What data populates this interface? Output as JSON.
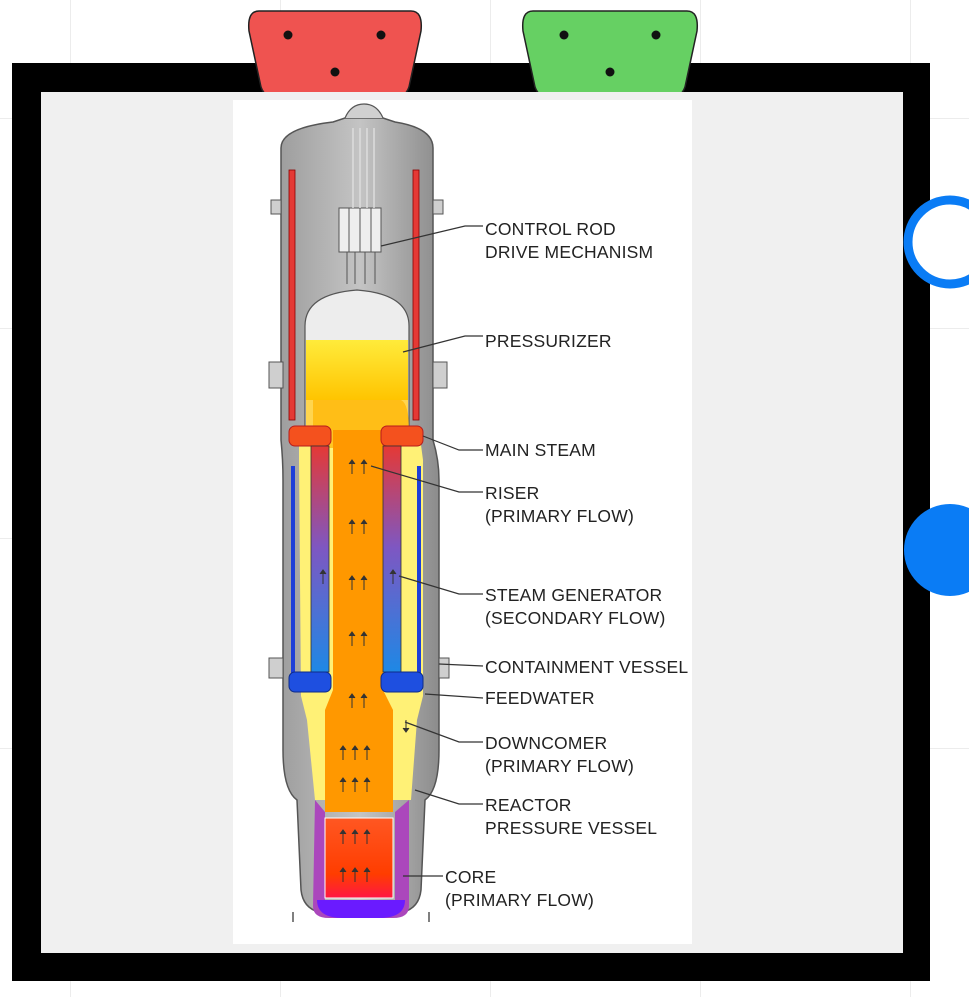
{
  "diagram": {
    "labels": [
      {
        "id": "crdm",
        "lines": [
          "CONTROL ROD",
          "DRIVE MECHANISM"
        ]
      },
      {
        "id": "pressurizer",
        "lines": [
          "PRESSURIZER"
        ]
      },
      {
        "id": "main-steam",
        "lines": [
          "MAIN STEAM"
        ]
      },
      {
        "id": "riser",
        "lines": [
          "RISER",
          "(PRIMARY FLOW)"
        ]
      },
      {
        "id": "steam-generator",
        "lines": [
          "STEAM GENERATOR",
          "(SECONDARY FLOW)"
        ]
      },
      {
        "id": "containment-vessel",
        "lines": [
          "CONTAINMENT VESSEL"
        ]
      },
      {
        "id": "feedwater",
        "lines": [
          "FEEDWATER"
        ]
      },
      {
        "id": "downcomer",
        "lines": [
          "DOWNCOMER",
          "(PRIMARY FLOW)"
        ]
      },
      {
        "id": "rpv",
        "lines": [
          "REACTOR",
          "PRESSURE VESSEL"
        ]
      },
      {
        "id": "core",
        "lines": [
          "CORE",
          "(PRIMARY FLOW)"
        ]
      }
    ]
  },
  "controls": {
    "red_plug_color": "#ef5350",
    "green_plug_color": "#66d063",
    "accent_color": "#0a7cf5"
  }
}
